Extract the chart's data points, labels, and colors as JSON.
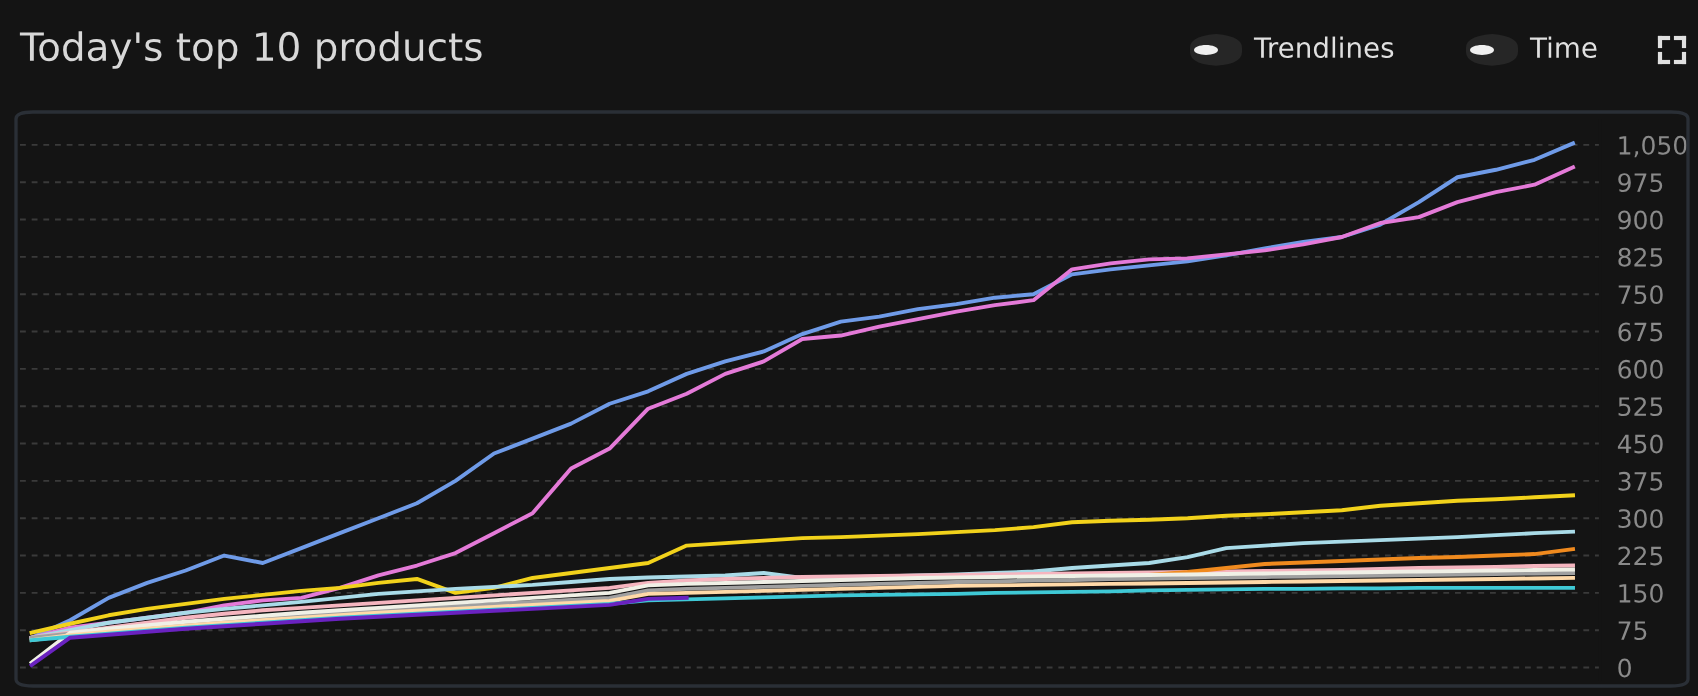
{
  "chart_data": {
    "type": "line",
    "title": "Today's top 10 products",
    "annotations": [
      "Trendlines",
      "Time"
    ],
    "categories": [
      null,
      null,
      null,
      null,
      null,
      null,
      null,
      null,
      null,
      null,
      null,
      null,
      null,
      null,
      null,
      null,
      null,
      null,
      null,
      null,
      null,
      null,
      null,
      null,
      null,
      null,
      null,
      null,
      null,
      null,
      null,
      null,
      null,
      null,
      null,
      null,
      null,
      null,
      null,
      null,
      null
    ],
    "series": [
      {
        "color": "#6f9be8",
        "values": [
          60,
          95,
          140,
          170,
          195,
          225,
          210,
          240,
          270,
          300,
          330,
          375,
          430,
          460,
          490,
          530,
          555,
          590,
          615,
          635,
          670,
          695,
          705,
          720,
          730,
          743,
          750,
          790,
          800,
          808,
          816,
          828,
          842,
          855,
          865,
          890,
          935,
          985,
          1000,
          1020,
          1053
        ]
      },
      {
        "color": "#e47ad8",
        "values": [
          60,
          80,
          90,
          100,
          110,
          125,
          135,
          140,
          160,
          185,
          205,
          230,
          270,
          310,
          400,
          440,
          520,
          550,
          590,
          615,
          660,
          667,
          685,
          700,
          715,
          728,
          738,
          800,
          812,
          820,
          822,
          830,
          838,
          850,
          865,
          893,
          905,
          935,
          955,
          970,
          1005
        ]
      },
      {
        "color": "#f2d21b",
        "values": [
          70,
          88,
          105,
          118,
          128,
          138,
          146,
          154,
          160,
          170,
          178,
          150,
          160,
          180,
          190,
          200,
          210,
          245,
          250,
          255,
          260,
          262,
          265,
          268,
          272,
          276,
          282,
          292,
          295,
          297,
          300,
          305,
          308,
          312,
          316,
          325,
          330,
          335,
          338,
          342,
          346
        ]
      },
      {
        "color": "#a9dbe8",
        "values": [
          60,
          75,
          90,
          100,
          110,
          118,
          125,
          132,
          140,
          148,
          153,
          158,
          162,
          166,
          172,
          178,
          181,
          183,
          185,
          190,
          180,
          181,
          183,
          185,
          187,
          190,
          193,
          200,
          205,
          210,
          222,
          240,
          245,
          250,
          253,
          256,
          259,
          262,
          266,
          270,
          273
        ]
      },
      {
        "color": "#f5b5bf",
        "values": [
          60,
          70,
          80,
          90,
          100,
          108,
          115,
          120,
          125,
          130,
          135,
          140,
          145,
          150,
          155,
          160,
          170,
          175,
          178,
          180,
          182,
          183,
          184,
          185,
          186,
          187,
          188,
          189,
          190,
          191,
          192,
          193,
          194,
          195,
          196,
          198,
          200,
          201,
          202,
          204,
          205
        ]
      },
      {
        "color": "#f08a1e",
        "values": [
          null,
          null,
          null,
          null,
          null,
          null,
          null,
          null,
          null,
          null,
          null,
          null,
          null,
          null,
          null,
          null,
          null,
          null,
          null,
          null,
          null,
          null,
          null,
          null,
          null,
          null,
          null,
          null,
          null,
          186,
          192,
          200,
          208,
          211,
          214,
          217,
          220,
          222,
          225,
          228,
          238
        ]
      },
      {
        "color": "#a0a0a0",
        "values": [
          60,
          68,
          75,
          82,
          88,
          94,
          100,
          105,
          110,
          115,
          120,
          124,
          128,
          132,
          136,
          140,
          155,
          158,
          160,
          162,
          164,
          166,
          168,
          170,
          172,
          173,
          175,
          176,
          178,
          179,
          180,
          181,
          182,
          183,
          184,
          185,
          186,
          187,
          188,
          189,
          190
        ]
      },
      {
        "color": "#f0f0e6",
        "values": [
          10,
          70,
          78,
          85,
          92,
          98,
          104,
          110,
          115,
          120,
          125,
          130,
          135,
          140,
          145,
          150,
          165,
          168,
          170,
          172,
          174,
          176,
          178,
          180,
          181,
          182,
          183,
          184,
          185,
          186,
          187,
          188,
          189,
          190,
          191,
          192,
          193,
          194,
          195,
          196,
          197
        ]
      },
      {
        "color": "#ffd9a8",
        "values": [
          55,
          65,
          72,
          78,
          84,
          90,
          95,
          100,
          105,
          110,
          114,
          118,
          122,
          126,
          130,
          134,
          148,
          150,
          152,
          154,
          156,
          158,
          160,
          162,
          164,
          165,
          166,
          167,
          168,
          169,
          170,
          171,
          172,
          173,
          174,
          175,
          176,
          177,
          178,
          179,
          180
        ]
      },
      {
        "color": "#3fc9d6",
        "values": [
          55,
          62,
          68,
          74,
          80,
          85,
          90,
          95,
          100,
          104,
          108,
          112,
          116,
          120,
          124,
          128,
          135,
          137,
          139,
          141,
          143,
          145,
          146,
          147,
          148,
          150,
          151,
          152,
          153,
          155,
          156,
          157,
          158,
          158,
          159,
          159,
          160,
          160,
          160,
          160,
          160
        ]
      },
      {
        "color": "#6a22c0",
        "values": [
          5,
          60,
          66,
          72,
          78,
          83,
          88,
          93,
          98,
          102,
          106,
          110,
          114,
          118,
          122,
          126,
          138,
          140,
          null,
          null,
          null,
          null,
          null,
          null,
          null,
          null,
          null,
          null,
          null,
          null,
          null,
          null,
          null,
          null,
          null,
          null,
          null,
          null,
          null,
          null,
          null
        ]
      }
    ],
    "ylim": [
      -25,
      1100
    ],
    "yticks": [
      0,
      75,
      150,
      225,
      300,
      375,
      450,
      525,
      600,
      675,
      750,
      825,
      900,
      975,
      {
        "value": 1050,
        "label": "1,050"
      }
    ],
    "grid": "y",
    "tick_labels": "y",
    "marker": "none",
    "line_style": "solid"
  }
}
